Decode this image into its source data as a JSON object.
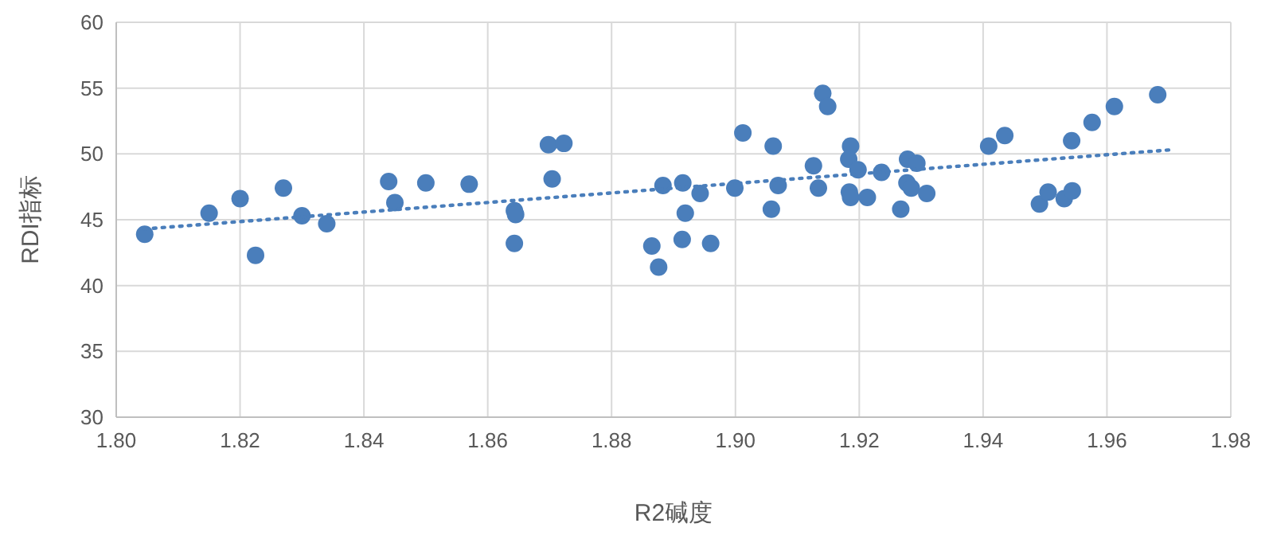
{
  "chart_data": {
    "type": "scatter",
    "xlabel": "R2碱度",
    "ylabel": "RDI指标",
    "xlim": [
      1.8,
      1.98
    ],
    "ylim": [
      30,
      60
    ],
    "xticks": [
      {
        "value": 1.8,
        "label": "1.80"
      },
      {
        "value": 1.82,
        "label": "1.82"
      },
      {
        "value": 1.84,
        "label": "1.84"
      },
      {
        "value": 1.86,
        "label": "1.86"
      },
      {
        "value": 1.88,
        "label": "1.88"
      },
      {
        "value": 1.9,
        "label": "1.90"
      },
      {
        "value": 1.92,
        "label": "1.92"
      },
      {
        "value": 1.94,
        "label": "1.94"
      },
      {
        "value": 1.96,
        "label": "1.96"
      },
      {
        "value": 1.98,
        "label": "1.98"
      }
    ],
    "yticks": [
      30,
      35,
      40,
      45,
      50,
      55,
      60
    ],
    "grid": true,
    "series": [
      {
        "marker": "circle",
        "color": "#4a7ebb",
        "x": [
          1.8046,
          1.815,
          1.82,
          1.8225,
          1.827,
          1.83,
          1.834,
          1.844,
          1.845,
          1.85,
          1.857,
          1.8643,
          1.8645,
          1.8643,
          1.8698,
          1.8723,
          1.8704,
          1.8883,
          1.8915,
          1.8943,
          1.8919,
          1.8865,
          1.8876,
          1.8914,
          1.896,
          1.8999,
          1.9012,
          1.9061,
          1.9058,
          1.9069,
          1.9126,
          1.9134,
          1.9141,
          1.9149,
          1.9186,
          1.9183,
          1.9198,
          1.9184,
          1.9186,
          1.9213,
          1.9236,
          1.9267,
          1.9278,
          1.9293,
          1.9277,
          1.9284,
          1.9309,
          1.9409,
          1.9435,
          1.9491,
          1.9505,
          1.9531,
          1.9544,
          1.9543,
          1.9576,
          1.9612,
          1.9682
        ],
        "values": [
          43.9,
          45.5,
          46.6,
          42.3,
          47.4,
          45.3,
          44.7,
          47.9,
          46.3,
          47.8,
          47.7,
          45.7,
          45.4,
          43.2,
          50.7,
          50.8,
          48.1,
          47.6,
          47.8,
          47.0,
          45.5,
          43.0,
          41.4,
          43.5,
          43.2,
          47.4,
          51.6,
          50.6,
          45.8,
          47.6,
          49.1,
          47.4,
          54.6,
          53.6,
          50.6,
          49.6,
          48.8,
          47.1,
          46.7,
          46.7,
          48.6,
          45.8,
          49.6,
          49.3,
          47.8,
          47.4,
          47.0,
          50.6,
          51.4,
          46.2,
          47.1,
          46.6,
          47.2,
          51.0,
          52.4,
          53.6,
          54.5
        ]
      },
      {
        "type": "line",
        "marker": "none",
        "color": "#4a7ebb",
        "line_style": "dotted",
        "x": [
          1.8046,
          1.97
        ],
        "values": [
          44.3,
          50.3
        ]
      }
    ]
  }
}
